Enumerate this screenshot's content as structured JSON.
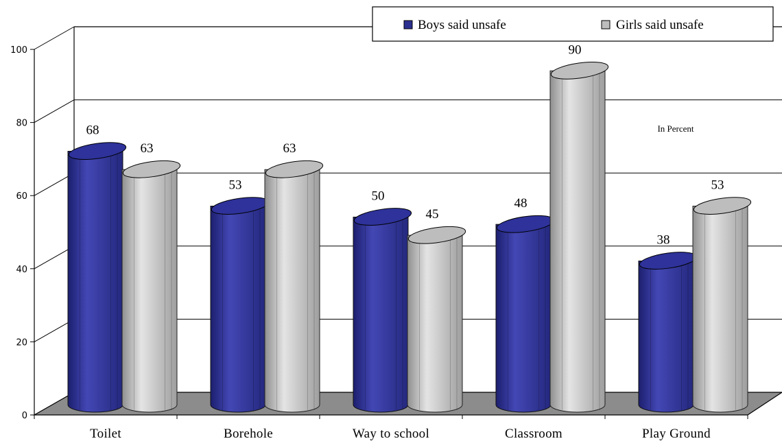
{
  "chart_data": {
    "type": "bar",
    "style": "3d-cylinder",
    "categories": [
      "Toilet",
      "Borehole",
      "Way to school",
      "Classroom",
      "Play Ground"
    ],
    "series": [
      {
        "name": "Boys said unsafe",
        "values": [
          68,
          53,
          50,
          48,
          38
        ],
        "color": "#2b2f8f"
      },
      {
        "name": "Girls said unsafe",
        "values": [
          63,
          63,
          45,
          90,
          53
        ],
        "color": "#b4b4b4"
      }
    ],
    "ylim": [
      0,
      100
    ],
    "yticks": [
      "0",
      "20",
      "40",
      "60",
      "80",
      "100"
    ],
    "annotation": "In Percent",
    "grid": true,
    "legend_position": "top-right",
    "floor_color": "#8c8c8c"
  }
}
